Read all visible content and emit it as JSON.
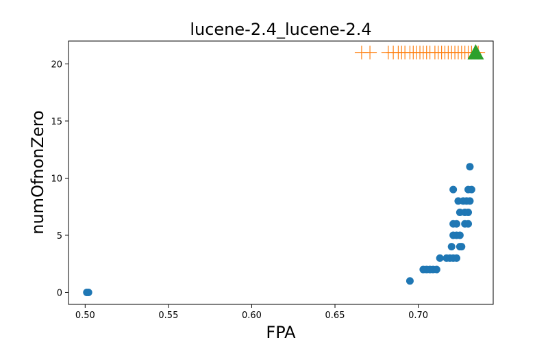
{
  "chart_data": {
    "type": "scatter",
    "title": "lucene-2.4_lucene-2.4",
    "xlabel": "FPA",
    "ylabel": "numOfnonZero",
    "xlim": [
      0.49,
      0.745
    ],
    "ylim": [
      -1.05,
      22.0
    ],
    "xticks": [
      {
        "value": 0.5,
        "label": "0.50"
      },
      {
        "value": 0.55,
        "label": "0.55"
      },
      {
        "value": 0.6,
        "label": "0.60"
      },
      {
        "value": 0.65,
        "label": "0.65"
      },
      {
        "value": 0.7,
        "label": "0.70"
      }
    ],
    "yticks": [
      {
        "value": 0,
        "label": "0"
      },
      {
        "value": 5,
        "label": "5"
      },
      {
        "value": 10,
        "label": "10"
      },
      {
        "value": 15,
        "label": "15"
      },
      {
        "value": 20,
        "label": "20"
      }
    ],
    "grid": false,
    "series": [
      {
        "marker": "circle",
        "color": "#1f77b4",
        "points": [
          [
            0.501,
            0
          ],
          [
            0.502,
            0
          ],
          [
            0.695,
            1
          ],
          [
            0.703,
            2
          ],
          [
            0.705,
            2
          ],
          [
            0.707,
            2
          ],
          [
            0.709,
            2
          ],
          [
            0.711,
            2
          ],
          [
            0.713,
            3
          ],
          [
            0.717,
            3
          ],
          [
            0.719,
            3
          ],
          [
            0.721,
            3
          ],
          [
            0.723,
            3
          ],
          [
            0.72,
            4
          ],
          [
            0.725,
            4
          ],
          [
            0.726,
            4
          ],
          [
            0.721,
            5
          ],
          [
            0.723,
            5
          ],
          [
            0.725,
            5
          ],
          [
            0.721,
            6
          ],
          [
            0.723,
            6
          ],
          [
            0.728,
            6
          ],
          [
            0.73,
            6
          ],
          [
            0.725,
            7
          ],
          [
            0.728,
            7
          ],
          [
            0.73,
            7
          ],
          [
            0.724,
            8
          ],
          [
            0.727,
            8
          ],
          [
            0.729,
            8
          ],
          [
            0.731,
            8
          ],
          [
            0.721,
            9
          ],
          [
            0.73,
            9
          ],
          [
            0.732,
            9
          ],
          [
            0.731,
            11
          ]
        ]
      },
      {
        "marker": "plus",
        "color": "#ff7f0e",
        "points": [
          [
            0.666,
            21
          ],
          [
            0.671,
            21
          ],
          [
            0.682,
            21
          ],
          [
            0.685,
            21
          ],
          [
            0.688,
            21
          ],
          [
            0.69,
            21
          ],
          [
            0.692,
            21
          ],
          [
            0.695,
            21
          ],
          [
            0.697,
            21
          ],
          [
            0.699,
            21
          ],
          [
            0.701,
            21
          ],
          [
            0.703,
            21
          ],
          [
            0.705,
            21
          ],
          [
            0.707,
            21
          ],
          [
            0.71,
            21
          ],
          [
            0.712,
            21
          ],
          [
            0.714,
            21
          ],
          [
            0.716,
            21
          ],
          [
            0.718,
            21
          ],
          [
            0.72,
            21
          ],
          [
            0.722,
            21
          ],
          [
            0.724,
            21
          ],
          [
            0.726,
            21
          ],
          [
            0.728,
            21
          ],
          [
            0.73,
            21
          ],
          [
            0.732,
            21
          ],
          [
            0.734,
            21
          ],
          [
            0.736,
            21
          ]
        ]
      },
      {
        "marker": "triangle",
        "color": "#2ca02c",
        "points": [
          [
            0.7345,
            21
          ]
        ]
      }
    ]
  }
}
